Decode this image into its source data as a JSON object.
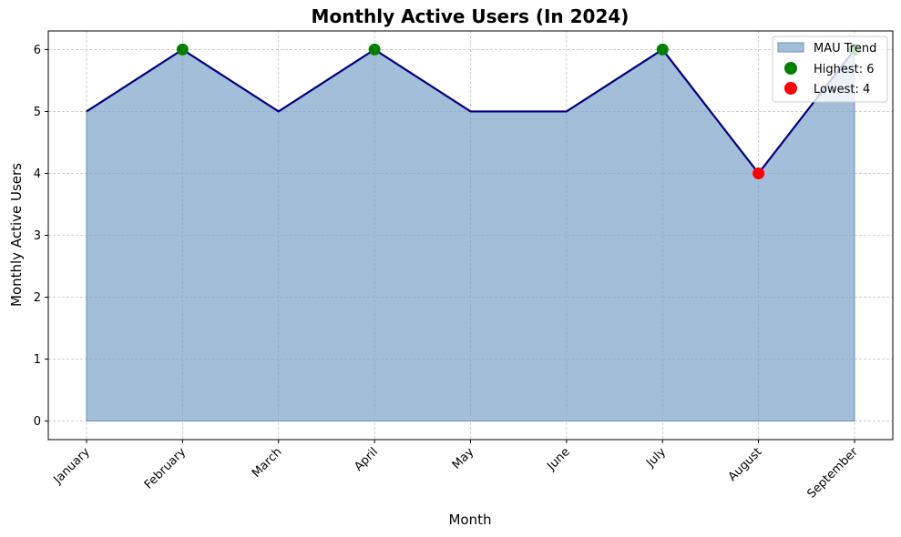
{
  "chart_data": {
    "type": "area",
    "title": "Monthly Active Users (In 2024)",
    "xlabel": "Month",
    "ylabel": "Monthly Active Users",
    "categories": [
      "January",
      "February",
      "March",
      "April",
      "May",
      "June",
      "July",
      "August",
      "September"
    ],
    "values": [
      5,
      6,
      5,
      6,
      5,
      5,
      6,
      4,
      6
    ],
    "ylim": [
      -0.3,
      6.3
    ],
    "yticks": [
      0,
      1,
      2,
      3,
      4,
      5,
      6
    ],
    "grid": true,
    "legend_position": "top-right",
    "legend": {
      "area": "MAU Trend",
      "highest": "Highest: 6",
      "lowest": "Lowest: 4"
    },
    "highest_value": 6,
    "lowest_value": 4,
    "colors": {
      "area_fill": "#7aa2c8",
      "area_edge": "#6f8fb5",
      "line": "#000080",
      "highest": "#008000",
      "lowest": "#ff0000",
      "grid": "#b0b0b0"
    }
  }
}
